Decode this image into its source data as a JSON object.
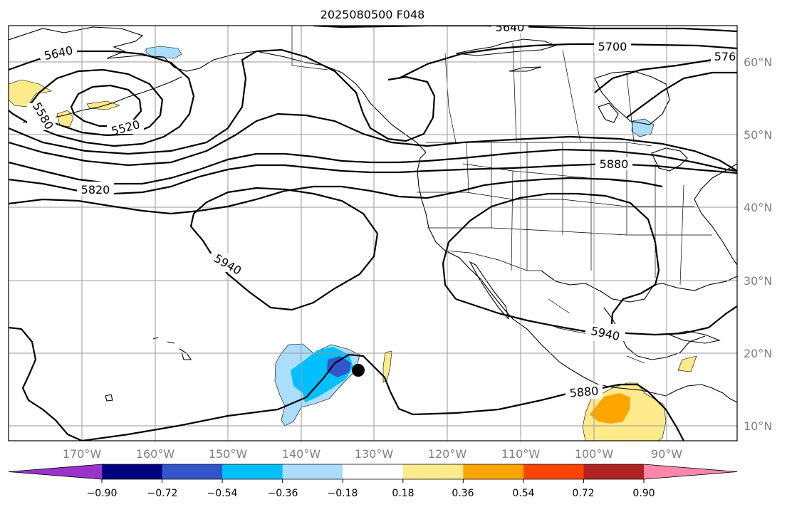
{
  "title": "2025080500 F048",
  "lat_labels": [
    "60°N",
    "50°N",
    "40°N",
    "30°N",
    "20°N",
    "10°N"
  ],
  "lon_labels": [
    "170°W",
    "160°W",
    "150°W",
    "140°W",
    "130°W",
    "120°W",
    "110°W",
    "100°W",
    "90°W"
  ],
  "contour_labels": [
    "5640",
    "5700",
    "576",
    "5640",
    "5520",
    "5580",
    "5820",
    "5880",
    "5940",
    "5940",
    "5880"
  ],
  "colorbar": {
    "tick_labels": [
      "−0.90",
      "−0.72",
      "−0.54",
      "−0.36",
      "−0.18",
      "0.18",
      "0.36",
      "0.54",
      "0.72",
      "0.90"
    ],
    "colors": [
      "#9933cc",
      "#000080",
      "#3355cc",
      "#00bfff",
      "#aaddff",
      "#ffffff",
      "#ffea8c",
      "#ffa500",
      "#ff4500",
      "#b22222",
      "#ff88aa"
    ]
  },
  "colors": {
    "pos_light": "#ffea8c",
    "pos_mid": "#ffa500",
    "neg_light": "#aaddff",
    "neg_mid": "#00bfff",
    "neg_dark": "#3355cc"
  },
  "marker": "storm-center-dot"
}
